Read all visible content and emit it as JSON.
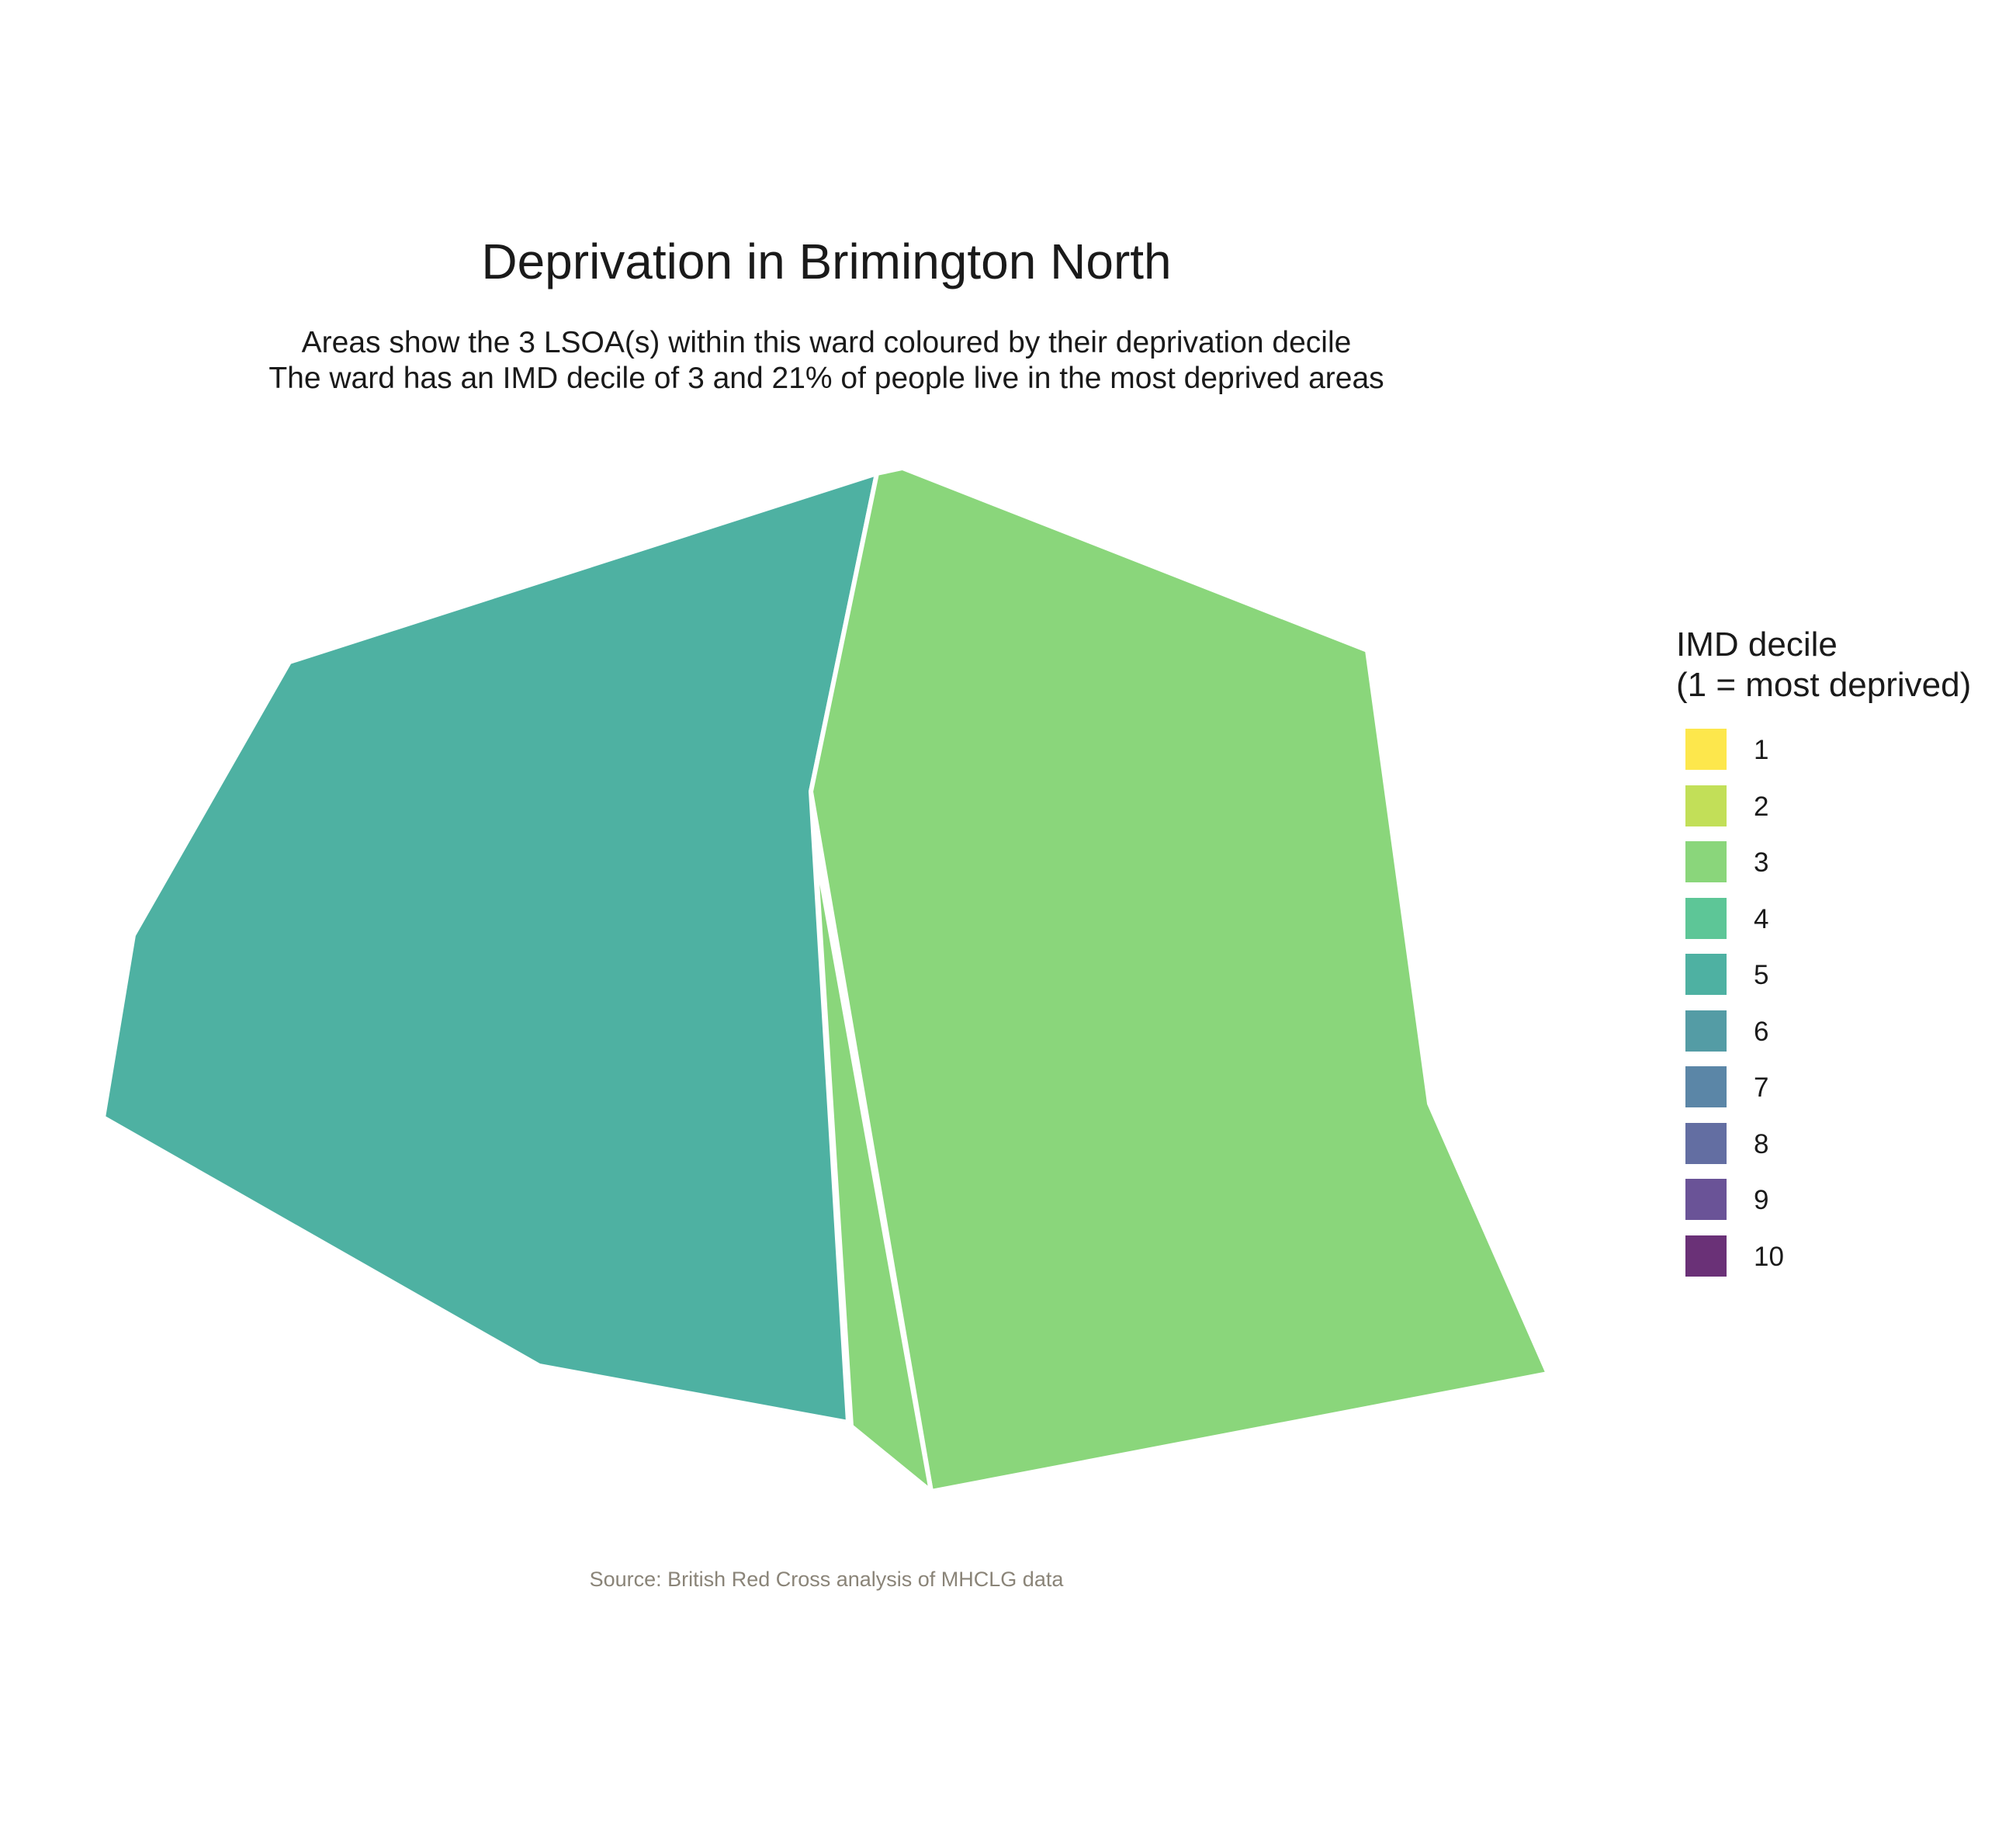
{
  "title": "Deprivation in Brimington North",
  "subtitle_line1": "Areas show the 3 LSOA(s) within this ward coloured by their deprivation decile",
  "subtitle_line2": "The ward has an IMD decile of 3 and 21% of people live in the most deprived areas",
  "caption": "Source: British Red Cross analysis of MHCLG data",
  "legend": {
    "title_line1": "IMD decile",
    "title_line2": "(1 = most deprived)",
    "items": [
      {
        "label": "1",
        "color": "#FDE74C"
      },
      {
        "label": "2",
        "color": "#C2DF58"
      },
      {
        "label": "3",
        "color": "#8AD67B"
      },
      {
        "label": "4",
        "color": "#5DC697"
      },
      {
        "label": "5",
        "color": "#4EB1A2"
      },
      {
        "label": "6",
        "color": "#549CA5"
      },
      {
        "label": "7",
        "color": "#5B86A7"
      },
      {
        "label": "8",
        "color": "#636EA2"
      },
      {
        "label": "9",
        "color": "#6A5397"
      },
      {
        "label": "10",
        "color": "#6A3177"
      }
    ]
  },
  "areas": [
    {
      "name": "west-lsoa",
      "decile": 5,
      "color": "#4EB1A2"
    },
    {
      "name": "east-lsoa",
      "decile": 3,
      "color": "#8AD67B"
    },
    {
      "name": "sliver-lsoa",
      "decile": 3,
      "color": "#8AD67B"
    }
  ],
  "border_color": "#ffffff"
}
